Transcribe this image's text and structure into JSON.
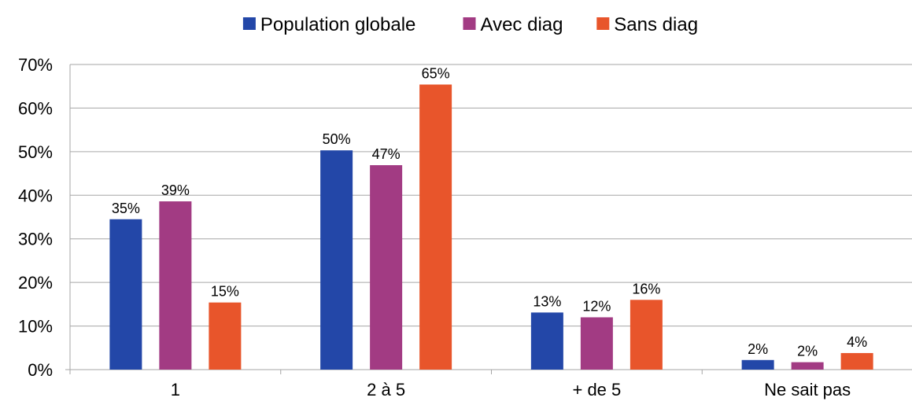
{
  "chart_data": {
    "type": "bar",
    "title": "",
    "xlabel": "",
    "ylabel": "",
    "categories": [
      "1",
      "2 à 5",
      "+ de 5",
      "Ne sait pas"
    ],
    "ylim": [
      0,
      70
    ],
    "yticks": [
      "0%",
      "10%",
      "20%",
      "30%",
      "40%",
      "50%",
      "60%",
      "70%"
    ],
    "grid": true,
    "legend_position": "top",
    "series": [
      {
        "name": "Population globale",
        "color": "#2347a8",
        "values": [
          34.5,
          50.3,
          13.1,
          2.2
        ],
        "labels": [
          "35%",
          "50%",
          "13%",
          "2%"
        ]
      },
      {
        "name": "Avec diag",
        "color": "#a23b83",
        "values": [
          38.6,
          46.9,
          12.0,
          1.7
        ],
        "labels": [
          "39%",
          "47%",
          "12%",
          "2%"
        ]
      },
      {
        "name": "Sans diag",
        "color": "#e8552b",
        "values": [
          15.4,
          65.4,
          16.0,
          3.8
        ],
        "labels": [
          "15%",
          "65%",
          "16%",
          "4%"
        ]
      }
    ]
  }
}
